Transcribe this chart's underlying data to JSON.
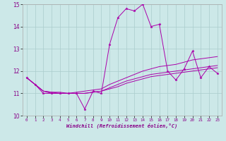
{
  "bg_color": "#cce8e8",
  "grid_color": "#aacccc",
  "line_color": "#aa00aa",
  "xlim": [
    -0.5,
    23.5
  ],
  "ylim": [
    10,
    15
  ],
  "yticks": [
    10,
    11,
    12,
    13,
    14,
    15
  ],
  "xticks": [
    0,
    1,
    2,
    3,
    4,
    5,
    6,
    7,
    8,
    9,
    10,
    11,
    12,
    13,
    14,
    15,
    16,
    17,
    18,
    19,
    20,
    21,
    22,
    23
  ],
  "xlabel": "Windchill (Refroidissement éolien,°C)",
  "line1_y": [
    11.7,
    11.4,
    11.0,
    11.0,
    11.0,
    11.0,
    11.0,
    10.3,
    11.1,
    11.0,
    13.2,
    14.4,
    14.8,
    14.7,
    15.0,
    14.0,
    14.1,
    12.0,
    11.6,
    12.1,
    12.9,
    11.7,
    12.2,
    11.9
  ],
  "line2_y": [
    11.7,
    11.4,
    11.1,
    11.05,
    11.05,
    11.0,
    11.05,
    11.1,
    11.15,
    11.2,
    11.4,
    11.55,
    11.7,
    11.85,
    12.0,
    12.1,
    12.2,
    12.25,
    12.3,
    12.4,
    12.5,
    12.55,
    12.6,
    12.65
  ],
  "line3_y": [
    11.7,
    11.4,
    11.1,
    11.05,
    11.0,
    11.0,
    11.0,
    11.0,
    11.05,
    11.1,
    11.25,
    11.4,
    11.55,
    11.65,
    11.75,
    11.85,
    11.9,
    11.95,
    12.0,
    12.05,
    12.1,
    12.15,
    12.2,
    12.25
  ],
  "line4_y": [
    11.7,
    11.4,
    11.1,
    11.0,
    11.0,
    11.0,
    11.0,
    11.0,
    11.05,
    11.1,
    11.2,
    11.3,
    11.45,
    11.55,
    11.65,
    11.75,
    11.8,
    11.85,
    11.9,
    11.95,
    12.0,
    12.05,
    12.1,
    12.15
  ]
}
